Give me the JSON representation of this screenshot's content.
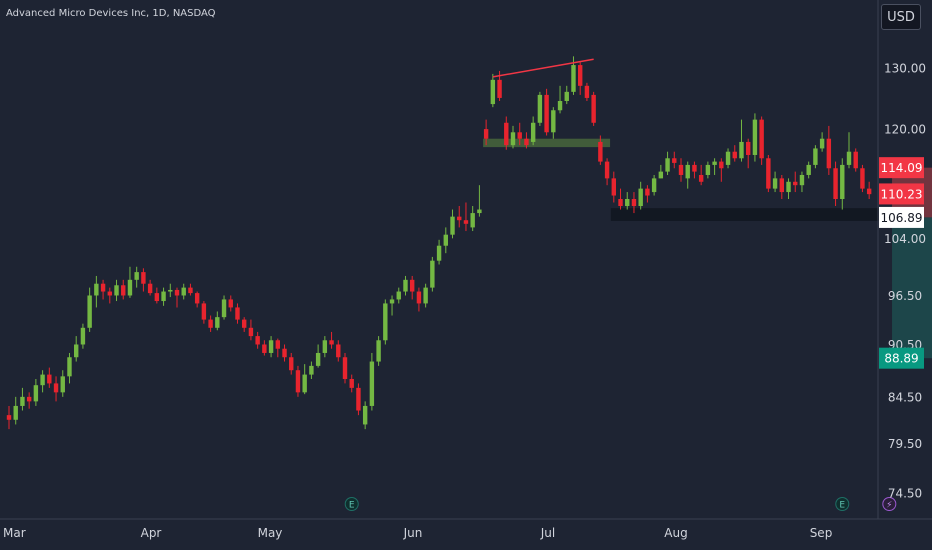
{
  "header": {
    "symbol_title": "Advanced Micro Devices Inc, 1D, NASDAQ",
    "currency_button": "USD"
  },
  "colors": {
    "background": "#1e2433",
    "up": "#74b843",
    "down": "#e8242e",
    "text": "#d1d4dc",
    "axis_line": "#3a4050",
    "stop_zone": "#7b3640",
    "target_zone": "#1d4a4c",
    "label_red": "#f23645",
    "label_green": "#089981"
  },
  "chart_data": {
    "type": "candlestick",
    "title": "Advanced Micro Devices Inc, 1D, NASDAQ",
    "y_scale": "log",
    "y_ticks": [
      130.0,
      120.0,
      104.0,
      96.5,
      90.5,
      84.5,
      79.5,
      74.5
    ],
    "x_ticks": [
      "Mar",
      "Apr",
      "May",
      "Jun",
      "Jul",
      "Aug",
      "Sep"
    ],
    "candles": [
      [
        82.5,
        82.0,
        83.5,
        81.0
      ],
      [
        82.0,
        83.5,
        84.5,
        81.5
      ],
      [
        83.5,
        84.5,
        85.5,
        83.0
      ],
      [
        84.5,
        84.0,
        85.0,
        83.2
      ],
      [
        84.0,
        85.8,
        86.5,
        83.5
      ],
      [
        85.8,
        87.0,
        87.5,
        85.0
      ],
      [
        87.0,
        86.0,
        87.8,
        85.5
      ],
      [
        86.0,
        85.0,
        86.8,
        84.0
      ],
      [
        85.0,
        86.8,
        87.5,
        84.5
      ],
      [
        86.8,
        89.0,
        89.5,
        86.0
      ],
      [
        89.0,
        90.5,
        91.5,
        88.5
      ],
      [
        90.5,
        92.5,
        93.0,
        90.0
      ],
      [
        92.5,
        96.5,
        97.5,
        92.0
      ],
      [
        96.5,
        98.0,
        99.0,
        95.0
      ],
      [
        98.0,
        97.0,
        98.5,
        96.0
      ],
      [
        97.0,
        96.5,
        97.5,
        95.5
      ],
      [
        96.5,
        97.8,
        98.5,
        95.8
      ],
      [
        97.8,
        96.5,
        98.5,
        96.0
      ],
      [
        96.5,
        98.5,
        100.2,
        96.2
      ],
      [
        98.5,
        99.5,
        100.2,
        97.5
      ],
      [
        99.5,
        98.0,
        100.0,
        97.0
      ],
      [
        98.0,
        96.8,
        98.5,
        96.5
      ],
      [
        96.8,
        95.8,
        97.5,
        95.5
      ],
      [
        95.8,
        97.0,
        97.5,
        95.2
      ],
      [
        97.0,
        97.2,
        98.0,
        96.3
      ],
      [
        97.2,
        96.5,
        97.5,
        95.0
      ],
      [
        96.5,
        97.5,
        98.0,
        96.0
      ],
      [
        97.5,
        96.8,
        98.0,
        96.5
      ],
      [
        96.8,
        95.5,
        97.0,
        95.0
      ],
      [
        95.5,
        93.5,
        95.8,
        93.0
      ],
      [
        93.5,
        92.5,
        94.0,
        92.0
      ],
      [
        92.5,
        93.8,
        94.5,
        92.2
      ],
      [
        93.8,
        96.0,
        96.5,
        93.5
      ],
      [
        96.0,
        95.0,
        96.5,
        94.5
      ],
      [
        95.0,
        93.5,
        95.5,
        93.0
      ],
      [
        93.5,
        92.5,
        93.8,
        92.0
      ],
      [
        92.5,
        91.5,
        93.5,
        91.0
      ],
      [
        91.5,
        90.5,
        92.0,
        90.0
      ],
      [
        90.5,
        89.5,
        91.0,
        89.2
      ],
      [
        89.5,
        91.0,
        91.5,
        89.0
      ],
      [
        91.0,
        90.0,
        91.2,
        89.0
      ],
      [
        90.0,
        89.0,
        90.5,
        88.5
      ],
      [
        89.0,
        87.5,
        89.5,
        87.0
      ],
      [
        87.5,
        85.0,
        88.0,
        84.5
      ],
      [
        85.0,
        87.0,
        88.2,
        84.8
      ],
      [
        87.0,
        88.0,
        88.5,
        86.5
      ],
      [
        88.0,
        89.5,
        90.5,
        87.8
      ],
      [
        89.5,
        91.0,
        91.5,
        89.0
      ],
      [
        91.0,
        90.5,
        92.0,
        90.0
      ],
      [
        90.5,
        89.0,
        91.0,
        88.5
      ],
      [
        89.0,
        86.5,
        89.5,
        86.0
      ],
      [
        86.5,
        85.5,
        87.0,
        85.0
      ],
      [
        85.5,
        83.0,
        86.0,
        82.5
      ],
      [
        81.5,
        83.5,
        84.0,
        81.0
      ],
      [
        83.5,
        88.5,
        89.5,
        83.0
      ],
      [
        88.5,
        91.0,
        91.5,
        88.0
      ],
      [
        91.0,
        95.5,
        96.0,
        90.5
      ],
      [
        95.5,
        96.0,
        96.5,
        94.0
      ],
      [
        96.0,
        97.0,
        97.5,
        95.5
      ],
      [
        97.0,
        98.5,
        99.0,
        96.5
      ],
      [
        98.5,
        97.0,
        99.0,
        96.0
      ],
      [
        97.0,
        95.5,
        97.5,
        94.5
      ],
      [
        95.5,
        97.5,
        98.0,
        95.0
      ],
      [
        97.5,
        101.0,
        101.5,
        97.0
      ],
      [
        101.0,
        103.0,
        103.8,
        100.5
      ],
      [
        103.0,
        104.5,
        105.5,
        102.0
      ],
      [
        104.5,
        107.0,
        108.0,
        104.0
      ],
      [
        107.0,
        106.5,
        108.5,
        105.5
      ],
      [
        106.5,
        106.0,
        109.0,
        105.0
      ],
      [
        105.5,
        107.5,
        108.5,
        105.0
      ],
      [
        107.5,
        108.0,
        111.5,
        107.0
      ],
      [
        120.0,
        118.5,
        121.5,
        117.5
      ],
      [
        124.0,
        128.0,
        129.0,
        123.5
      ],
      [
        128.0,
        125.0,
        129.5,
        124.5
      ],
      [
        121.0,
        117.5,
        122.0,
        116.8
      ],
      [
        117.5,
        119.5,
        120.5,
        117.0
      ],
      [
        119.5,
        118.5,
        121.0,
        117.5
      ],
      [
        118.5,
        117.5,
        119.5,
        117.0
      ],
      [
        118.0,
        121.0,
        122.0,
        117.5
      ],
      [
        121.0,
        125.5,
        126.0,
        120.5
      ],
      [
        125.5,
        119.5,
        126.5,
        119.0
      ],
      [
        119.5,
        123.0,
        123.5,
        118.5
      ],
      [
        123.0,
        124.5,
        127.0,
        122.5
      ],
      [
        124.5,
        126.0,
        127.0,
        124.0
      ],
      [
        126.0,
        130.5,
        132.0,
        125.5
      ],
      [
        130.5,
        127.0,
        131.0,
        125.5
      ],
      [
        127.0,
        125.0,
        127.5,
        124.5
      ],
      [
        125.5,
        121.0,
        126.0,
        120.5
      ],
      [
        118.0,
        115.0,
        119.0,
        114.5
      ],
      [
        115.0,
        112.5,
        115.5,
        111.5
      ],
      [
        112.5,
        110.0,
        113.5,
        109.0
      ],
      [
        109.5,
        108.5,
        111.0,
        108.0
      ],
      [
        108.5,
        109.5,
        110.5,
        108.0
      ],
      [
        109.5,
        108.5,
        110.5,
        107.5
      ],
      [
        108.5,
        111.0,
        112.0,
        108.0
      ],
      [
        111.0,
        110.0,
        111.5,
        109.0
      ],
      [
        110.5,
        112.5,
        113.0,
        110.0
      ],
      [
        112.5,
        113.5,
        114.5,
        112.5
      ],
      [
        113.5,
        115.5,
        116.5,
        113.0
      ],
      [
        115.5,
        114.8,
        116.5,
        114.0
      ],
      [
        114.5,
        113.0,
        115.5,
        112.0
      ],
      [
        112.5,
        114.5,
        115.0,
        111.0
      ],
      [
        114.5,
        113.5,
        115.0,
        112.5
      ],
      [
        113.0,
        112.0,
        114.5,
        111.5
      ],
      [
        113.0,
        114.5,
        115.0,
        112.5
      ],
      [
        114.5,
        115.0,
        115.5,
        113.0
      ],
      [
        115.0,
        114.0,
        115.5,
        112.0
      ],
      [
        114.5,
        116.5,
        117.0,
        114.0
      ],
      [
        116.5,
        115.5,
        117.5,
        115.0
      ],
      [
        115.5,
        118.0,
        121.5,
        115.0
      ],
      [
        118.0,
        116.0,
        118.5,
        114.0
      ],
      [
        116.0,
        121.5,
        122.5,
        115.0
      ],
      [
        121.5,
        115.5,
        122.0,
        114.5
      ],
      [
        115.5,
        111.0,
        116.0,
        110.5
      ],
      [
        111.0,
        112.5,
        113.5,
        110.5
      ],
      [
        112.5,
        110.5,
        113.0,
        109.5
      ],
      [
        110.5,
        112.0,
        112.5,
        109.5
      ],
      [
        112.0,
        111.5,
        113.5,
        110.5
      ],
      [
        111.5,
        113.0,
        113.5,
        110.5
      ],
      [
        113.0,
        114.5,
        115.0,
        112.5
      ],
      [
        114.5,
        117.0,
        117.5,
        114.0
      ],
      [
        117.0,
        118.5,
        119.5,
        116.5
      ],
      [
        118.5,
        114.0,
        120.5,
        113.0
      ],
      [
        114.0,
        109.5,
        115.0,
        108.5
      ],
      [
        109.5,
        114.5,
        115.5,
        108.0
      ],
      [
        114.5,
        116.5,
        119.5,
        114.0
      ],
      [
        116.5,
        114.0,
        117.0,
        113.5
      ],
      [
        114.0,
        111.0,
        114.5,
        110.5
      ],
      [
        111.0,
        110.2,
        112.0,
        109.5
      ]
    ],
    "annotations": {
      "rising_wedge_line": {
        "from": [
          72,
          128.5
        ],
        "to": [
          87,
          131.5
        ]
      },
      "support_zone_june": {
        "from": 71,
        "to": 89,
        "low": 117.2,
        "high": 118.5
      },
      "support_zone_july": {
        "from": 90,
        "to": 129,
        "low": 106.4,
        "high": 108.2
      },
      "earnings_markers": [
        51,
        124
      ],
      "dividend_marker": 131,
      "position": {
        "entry": 106.89,
        "stop": 114.09,
        "target": 88.89,
        "from": 132,
        "to": 146
      }
    },
    "price_labels": [
      {
        "value": 114.09,
        "text": "114.09",
        "style": "red"
      },
      {
        "value": 110.23,
        "text": "110.23",
        "style": "red"
      },
      {
        "value": 106.89,
        "text": "106.89",
        "style": "white"
      },
      {
        "value": 88.89,
        "text": "88.89",
        "style": "green"
      }
    ]
  }
}
